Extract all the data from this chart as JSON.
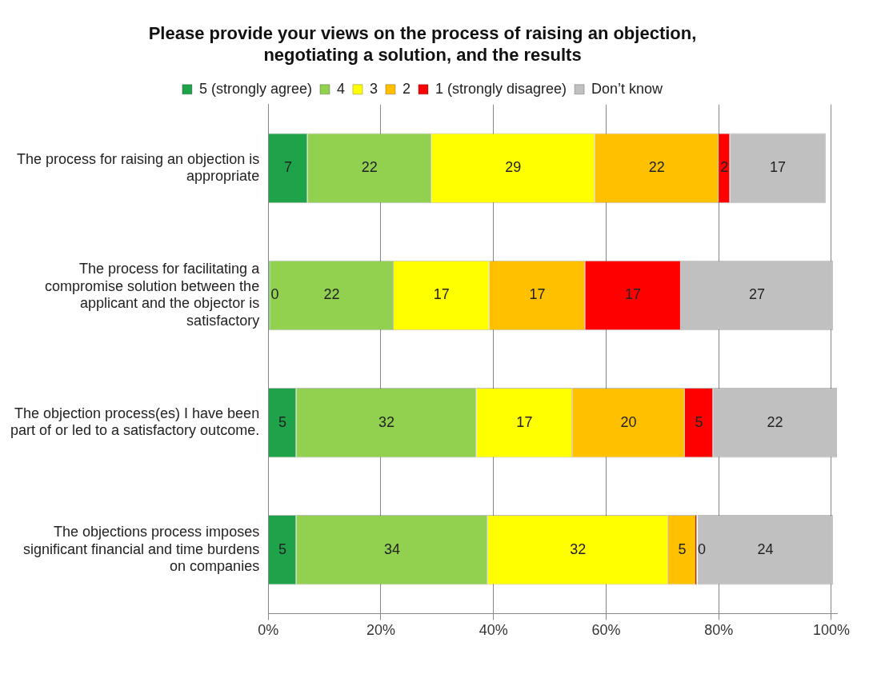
{
  "chart_data": {
    "type": "bar",
    "orientation": "horizontal",
    "stacked": true,
    "title": "Please provide your views on the process of raising an objection, negotiating a solution, and the results",
    "categories": [
      "The process for raising an objection is appropriate",
      "The process for facilitating a compromise solution between the applicant and the objector is satisfactory",
      "The objection process(es) I have been part of or led to a satisfactory outcome.",
      "The objections process imposes significant financial and time burdens on companies"
    ],
    "series": [
      {
        "name": "5 (strongly agree)",
        "color": "#1fa34a",
        "values": [
          7,
          0,
          5,
          5
        ],
        "value_labels": [
          "7",
          "0",
          "5",
          "5"
        ]
      },
      {
        "name": "4",
        "color": "#92d050",
        "values": [
          22,
          22,
          32,
          34
        ],
        "value_labels": [
          "22",
          "22",
          "32",
          "34"
        ]
      },
      {
        "name": "3",
        "color": "#ffff00",
        "values": [
          29,
          17,
          17,
          32
        ],
        "value_labels": [
          "29",
          "17",
          "17",
          "32"
        ]
      },
      {
        "name": "2",
        "color": "#ffc000",
        "values": [
          22,
          17,
          20,
          5
        ],
        "value_labels": [
          "22",
          "17",
          "20",
          "5"
        ]
      },
      {
        "name": "1 (strongly disagree)",
        "color": "#ff0000",
        "values": [
          2,
          17,
          5,
          0
        ],
        "value_labels": [
          "2",
          "17",
          "5",
          "0"
        ]
      },
      {
        "name": "Don’t know",
        "color": "#c0c0c0",
        "values": [
          17,
          27,
          22,
          24
        ],
        "value_labels": [
          "17",
          "27",
          "22",
          "24"
        ]
      }
    ],
    "xlim": [
      0,
      101
    ],
    "xticks": [
      {
        "value": 0,
        "label": "0%"
      },
      {
        "value": 20,
        "label": "20%"
      },
      {
        "value": 40,
        "label": "40%"
      },
      {
        "value": 60,
        "label": "60%"
      },
      {
        "value": 80,
        "label": "80%"
      },
      {
        "value": 100,
        "label": "100%"
      }
    ],
    "grid": "x",
    "legend": "top"
  }
}
